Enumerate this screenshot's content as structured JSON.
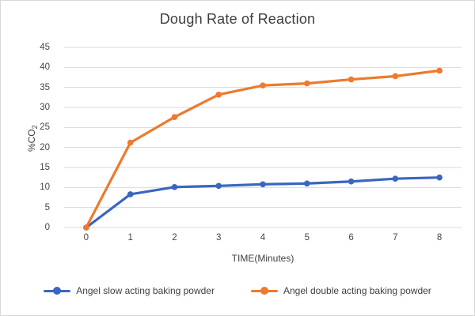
{
  "chart_data": {
    "type": "line",
    "title": "Dough Rate of Reaction",
    "xlabel": "TIME(Minutes)",
    "ylabel": "%CO2",
    "ylabel_main": "%CO",
    "ylabel_sub": "2",
    "categories": [
      "0",
      "1",
      "2",
      "3",
      "4",
      "5",
      "6",
      "7",
      "8"
    ],
    "series": [
      {
        "name": "Angel slow acting baking powder",
        "color": "#3A66C1",
        "values": [
          0,
          8.3,
          10.1,
          10.4,
          10.8,
          11,
          11.5,
          12.2,
          12.5
        ]
      },
      {
        "name": "Angel double acting baking powder",
        "color": "#ED7A2D",
        "values": [
          0,
          21.2,
          27.6,
          33.2,
          35.5,
          36,
          37,
          37.8,
          39.2
        ]
      }
    ],
    "ylim": [
      0,
      45
    ],
    "ytick_step": 5,
    "grid": "horizontal",
    "legend_position": "bottom",
    "colors": {
      "gridline": "#D9D9D9",
      "tick_text": "#464646",
      "title_text": "#3D3D3D",
      "background": "#FFFFFF"
    }
  }
}
